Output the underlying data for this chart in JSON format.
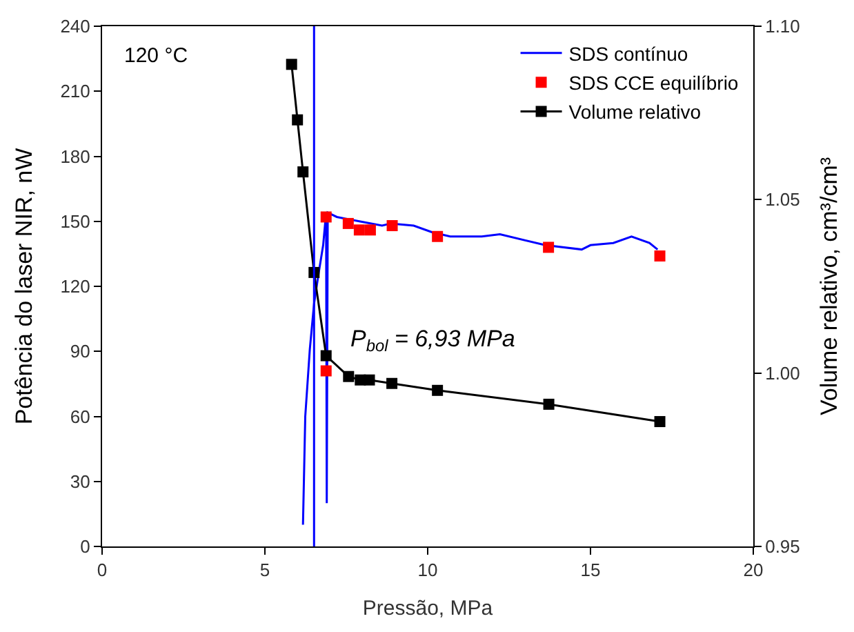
{
  "chart_data": {
    "type": "line",
    "xlabel": "Pressão, MPa",
    "ylabel": "Potência do laser NIR, nW",
    "y2label": "Volume relativo, cm³/cm³",
    "xlim": [
      0,
      20
    ],
    "xticks": [
      0,
      5,
      10,
      15,
      20
    ],
    "ylim": [
      0,
      240
    ],
    "yticks": [
      0,
      30,
      60,
      90,
      120,
      150,
      180,
      210,
      240
    ],
    "y2lim": [
      0.95,
      1.1
    ],
    "y2ticks": [
      {
        "value": 0.95,
        "label": "0.95"
      },
      {
        "value": 1.0,
        "label": "1.00"
      },
      {
        "value": 1.05,
        "label": "1.05"
      },
      {
        "value": 1.1,
        "label": "1.10"
      }
    ],
    "legend": "top right",
    "annotations": [
      "120 °C",
      "P$_{bol}$ = 6,93 MPa"
    ],
    "ref_lines": [
      {
        "axis": "x",
        "value": 6.51,
        "label": null,
        "color": "#0000ff"
      }
    ],
    "series": [
      {
        "name": "SDS contínuo",
        "color": "#0000ff",
        "marker": "none",
        "x": [
          6.17,
          6.24,
          6.38,
          6.51,
          6.65,
          6.79,
          6.88,
          6.9,
          6.93,
          7.21,
          7.9,
          8.6,
          8.87,
          9.57,
          10.13,
          10.69,
          11.66,
          12.22,
          13.61,
          14.73,
          15.0,
          15.7,
          16.26,
          16.81,
          17.06
        ],
        "values": [
          10,
          60,
          91,
          112,
          126,
          139,
          154,
          20,
          154,
          152,
          150,
          148,
          149,
          148,
          145,
          143,
          143,
          144,
          139,
          137,
          139,
          140,
          143,
          140,
          137
        ]
      },
      {
        "name": "SDS CCE equilíbrio",
        "type": "scatter",
        "color": "#ff0000",
        "marker": "square",
        "x": [
          6.88,
          6.88,
          7.56,
          7.9,
          8.24,
          8.91,
          10.3,
          13.71,
          17.13
        ],
        "values": [
          81,
          152,
          149,
          146,
          146,
          148,
          143,
          138,
          134
        ]
      },
      {
        "name": "Volume relativo",
        "type": "line",
        "axis": "y2",
        "color": "#000000",
        "marker": "square",
        "x": [
          5.82,
          6.0,
          6.17,
          6.51,
          6.88,
          7.57,
          7.93,
          8.21,
          8.9,
          10.3,
          13.72,
          17.13
        ],
        "values": [
          1.089,
          1.073,
          1.058,
          1.029,
          1.005,
          0.999,
          0.998,
          0.998,
          0.997,
          0.995,
          0.991,
          0.986
        ]
      }
    ]
  }
}
